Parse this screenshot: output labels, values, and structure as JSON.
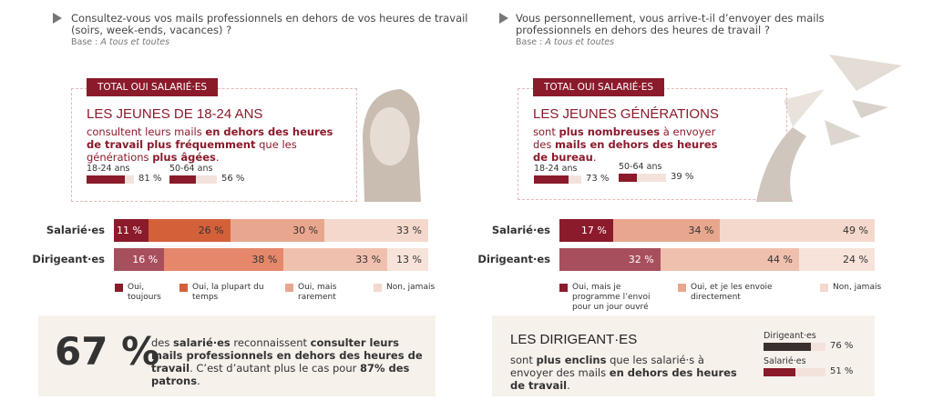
{
  "left": {
    "question": "Consultez-vous vos mails professionnels en dehors de vos heures de travail (soirs, week-ends, vacances) ?",
    "base_prefix": "Base :",
    "base_text": "A tous et toutes",
    "callout": {
      "tag": "TOTAL OUI SALARIÉ·ES",
      "headline": "LES JEUNES DE 18-24 ANS",
      "body": [
        {
          "text": "consultent leurs mails ",
          "bold": false
        },
        {
          "text": "en dehors des heures de travail plus fréquemment",
          "bold": true
        },
        {
          "text": " que les générations ",
          "bold": false
        },
        {
          "text": "plus âgées",
          "bold": true
        },
        {
          "text": ".",
          "bold": false
        }
      ],
      "xlim": [
        0,
        100
      ],
      "bars": [
        {
          "label": "18-24 ans",
          "value": 81,
          "value_label": "81 %",
          "color": "#8b1a2b"
        },
        {
          "label": "50-64 ans",
          "value": 56,
          "value_label": "56 %",
          "color": "#8b1a2b"
        }
      ]
    },
    "chart": {
      "type": "bar",
      "stacked": true,
      "orientation": "horizontal",
      "categories": [
        "Salarié·es",
        "Dirigeant·es"
      ],
      "xlim": [
        0,
        100
      ],
      "series": [
        {
          "name": "Oui, toujours",
          "colors": [
            "#8b1a2b",
            "#a84f5d"
          ],
          "values": [
            11,
            16
          ],
          "value_labels": [
            "11 %",
            "16 %"
          ]
        },
        {
          "name": "Oui, la plupart du temps",
          "colors": [
            "#d4603a",
            "#e5876a"
          ],
          "values": [
            26,
            38
          ],
          "value_labels": [
            "26 %",
            "38 %"
          ]
        },
        {
          "name": "Oui, mais rarement",
          "colors": [
            "#e9a68e",
            "#f0c0ae"
          ],
          "values": [
            30,
            33
          ],
          "value_labels": [
            "30 %",
            "33 %"
          ]
        },
        {
          "name": "Non, jamais",
          "colors": [
            "#f5d8cc",
            "#f7e3da"
          ],
          "values": [
            33,
            13
          ],
          "value_labels": [
            "33 %",
            "13 %"
          ]
        }
      ]
    }
  },
  "right": {
    "question": "Vous personnellement, vous arrive-t-il d’envoyer des mails professionnels en dehors des heures de travail ?",
    "base_prefix": "Base :",
    "base_text": "A tous et toutes",
    "callout": {
      "tag": "TOTAL OUI SALARIÉ·ES",
      "headline": "LES JEUNES GÉNÉRATIONS",
      "body": [
        {
          "text": "sont ",
          "bold": false
        },
        {
          "text": "plus nombreuses",
          "bold": true
        },
        {
          "text": " à envoyer des ",
          "bold": false
        },
        {
          "text": "mails en dehors des heures de bureau",
          "bold": true
        },
        {
          "text": ".",
          "bold": false
        }
      ],
      "xlim": [
        0,
        100
      ],
      "bars": [
        {
          "label": "18-24 ans",
          "value": 73,
          "value_label": "73 %",
          "color": "#8b1a2b"
        },
        {
          "label": "50-64 ans",
          "value": 39,
          "value_label": "39 %",
          "color": "#8b1a2b"
        }
      ]
    },
    "chart": {
      "type": "bar",
      "stacked": true,
      "orientation": "horizontal",
      "categories": [
        "Salarié·es",
        "Dirigeant·es"
      ],
      "xlim": [
        0,
        100
      ],
      "series": [
        {
          "name": "Oui, mais je programme l’envoi pour un jour ouvré",
          "colors": [
            "#8b1a2b",
            "#a84f5d"
          ],
          "values": [
            17,
            32
          ],
          "value_labels": [
            "17 %",
            "32 %"
          ]
        },
        {
          "name": "Oui, et je les envoie directement",
          "colors": [
            "#e9a68e",
            "#f0c0ae"
          ],
          "values": [
            34,
            44
          ],
          "value_labels": [
            "34 %",
            "44 %"
          ]
        },
        {
          "name": "Non, jamais",
          "colors": [
            "#f5d8cc",
            "#f7e3da"
          ],
          "values": [
            49,
            24
          ],
          "value_labels": [
            "49 %",
            "24 %"
          ]
        }
      ]
    }
  },
  "stat": {
    "text": "67 %",
    "body": [
      {
        "text": "des ",
        "bold": false
      },
      {
        "text": "salarié·es",
        "bold": true
      },
      {
        "text": " reconnaissent ",
        "bold": false
      },
      {
        "text": "consulter leurs mails professionnels en dehors des heures de travail",
        "bold": true
      },
      {
        "text": ". C’est d’autant plus le cas pour ",
        "bold": false
      },
      {
        "text": "87% des patrons",
        "bold": true
      },
      {
        "text": ".",
        "bold": false
      }
    ]
  },
  "summary": {
    "title": "LES DIRIGEANT·ES",
    "body": [
      {
        "text": "sont ",
        "bold": false
      },
      {
        "text": "plus enclins",
        "bold": true
      },
      {
        "text": " que les salarié·s à envoyer des mails ",
        "bold": false
      },
      {
        "text": "en dehors des heures de travail",
        "bold": true
      },
      {
        "text": ".",
        "bold": false
      }
    ],
    "xlim": [
      0,
      100
    ],
    "bars": [
      {
        "label": "Dirigeant·es",
        "value": 76,
        "value_label": "76 %",
        "color": "#3a302e"
      },
      {
        "label": "Salarié·es",
        "value": 51,
        "value_label": "51 %",
        "color": "#8b1a2b"
      }
    ]
  }
}
